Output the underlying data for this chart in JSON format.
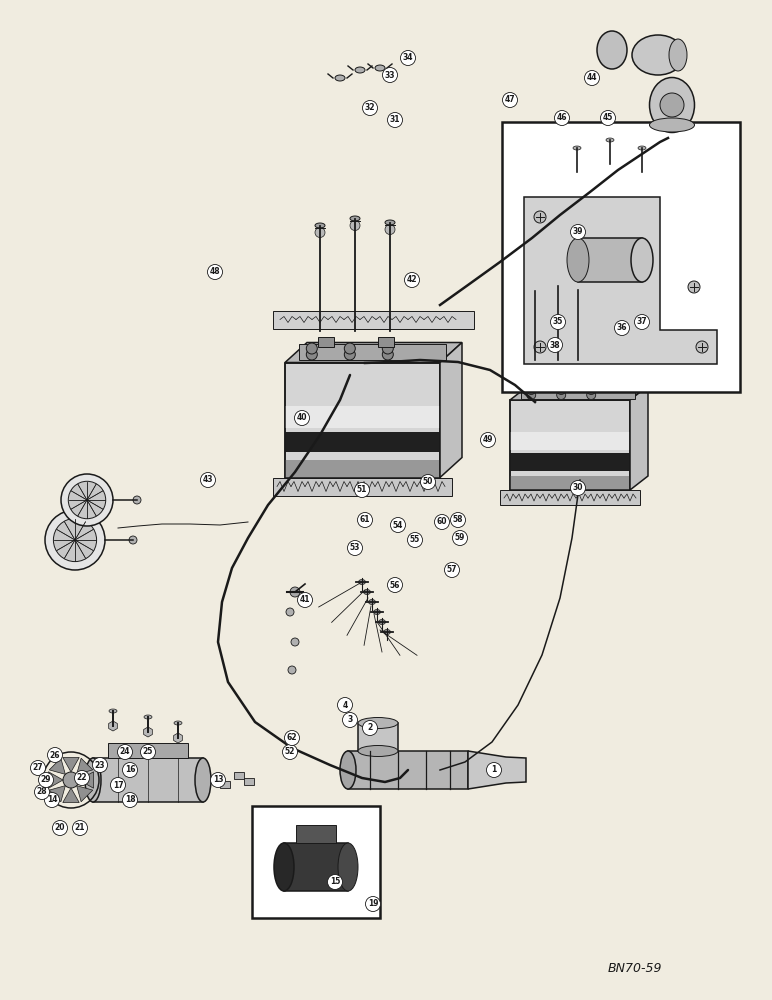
{
  "figure_width": 7.72,
  "figure_height": 10.0,
  "dpi": 100,
  "bg_color": "#f0ece0",
  "line_color": "#1a1a1a",
  "watermark": "BN70-59"
}
